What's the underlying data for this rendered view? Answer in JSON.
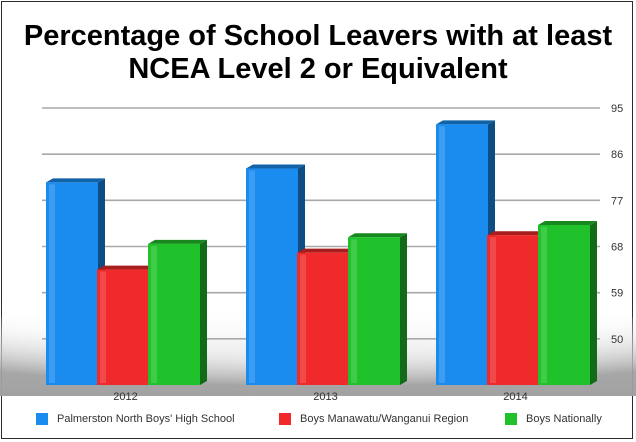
{
  "chart_data": {
    "type": "bar",
    "title": [
      "Percentage of School Leavers with at least",
      "NCEA Level 2 or Equivalent"
    ],
    "categories": [
      "2012",
      "2013",
      "2014"
    ],
    "series": [
      {
        "name": "Palmerston North Boys' High School",
        "values": [
          80.5,
          83.2,
          91.8
        ],
        "color": "#1a8cf0"
      },
      {
        "name": "Boys Manawatu/Wanganui Region",
        "values": [
          63.5,
          66.8,
          70.2
        ],
        "color": "#f02a2a"
      },
      {
        "name": "Boys Nationally",
        "values": [
          68.5,
          69.8,
          72.2
        ],
        "color": "#1fc22a"
      }
    ],
    "yticks": [
      50,
      59,
      68,
      77,
      86,
      95
    ],
    "ylim": [
      41,
      95
    ],
    "axis_position": "right",
    "grid": true,
    "legend_position": "bottom",
    "xlabel": "",
    "ylabel": ""
  }
}
